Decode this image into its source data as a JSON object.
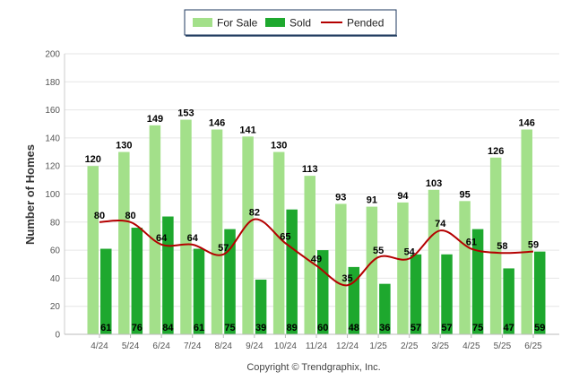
{
  "chart_data": {
    "type": "bar",
    "categories": [
      "4/24",
      "5/24",
      "6/24",
      "7/24",
      "8/24",
      "9/24",
      "10/24",
      "11/24",
      "12/24",
      "1/25",
      "2/25",
      "3/25",
      "4/25",
      "5/25",
      "6/25"
    ],
    "series": [
      {
        "name": "For Sale",
        "type": "bar",
        "color": "#a3e08a",
        "values": [
          120,
          130,
          149,
          153,
          146,
          141,
          130,
          113,
          93,
          91,
          94,
          103,
          95,
          126,
          146
        ]
      },
      {
        "name": "Sold",
        "type": "bar",
        "color": "#1ea82e",
        "values": [
          61,
          76,
          84,
          61,
          75,
          39,
          89,
          60,
          48,
          36,
          57,
          57,
          75,
          47,
          59
        ]
      },
      {
        "name": "Pended",
        "type": "line",
        "color": "#b40000",
        "values": [
          80,
          80,
          64,
          64,
          57,
          82,
          65,
          49,
          35,
          55,
          54,
          74,
          61,
          58,
          59
        ]
      }
    ],
    "ylabel": "Number of Homes",
    "xlabel": "",
    "ylim": [
      0,
      200
    ],
    "yticks": [
      0,
      20,
      40,
      60,
      80,
      100,
      120,
      140,
      160,
      180,
      200
    ],
    "grid": true,
    "legend_position": "top-center"
  },
  "footer": {
    "copyright": "Copyright © Trendgraphix, Inc."
  }
}
